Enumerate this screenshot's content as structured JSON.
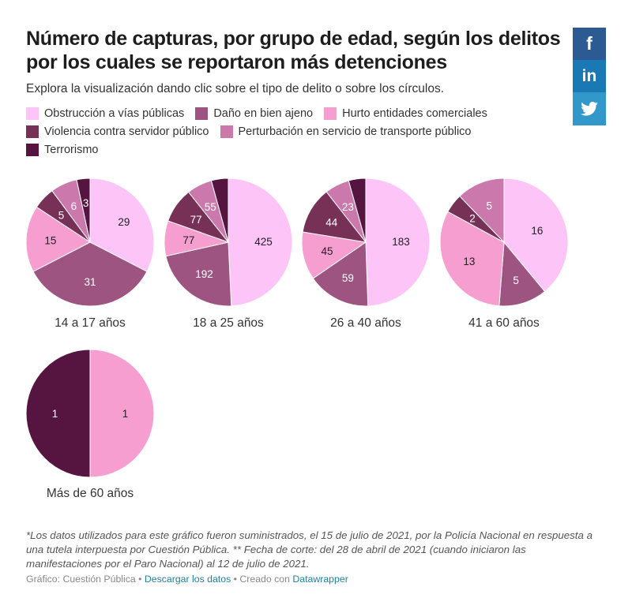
{
  "header": {
    "title": "Número de capturas, por grupo de edad, según los delitos por los cuales se reportaron más detenciones",
    "subtitle": "Explora la visualización dando clic sobre el tipo de delito o sobre los círculos."
  },
  "social": [
    {
      "name": "facebook-icon",
      "glyph": "f",
      "color": "#2c5b93"
    },
    {
      "name": "linkedin-icon",
      "glyph": "in",
      "color": "#1a78b4"
    },
    {
      "name": "twitter-icon",
      "glyph": "🐦",
      "color": "#3198c9"
    }
  ],
  "legend": [
    {
      "label": "Obstrucción a vías públicas",
      "color": "#fdc4f8"
    },
    {
      "label": "Daño en bien ajeno",
      "color": "#9e5481"
    },
    {
      "label": "Hurto entidades comerciales",
      "color": "#f59ecf"
    },
    {
      "label": "Violencia contra servidor público",
      "color": "#773056"
    },
    {
      "label": "Perturbación en servicio de transporte público",
      "color": "#cb78ad"
    },
    {
      "label": "Terrorismo",
      "color": "#561540"
    }
  ],
  "chart_data": {
    "type": "pie",
    "title": "Número de capturas, por grupo de edad, según los delitos por los cuales se reportaron más detenciones",
    "categories": [
      "Obstrucción a vías públicas",
      "Daño en bien ajeno",
      "Hurto entidades comerciales",
      "Violencia contra servidor público",
      "Perturbación en servicio de transporte público",
      "Terrorismo"
    ],
    "colors": [
      "#fdc4f8",
      "#9e5481",
      "#f59ecf",
      "#773056",
      "#cb78ad",
      "#561540"
    ],
    "label_colors": [
      "#222222",
      "#ffffff",
      "#222222",
      "#ffffff",
      "#ffffff",
      "#ffffff"
    ],
    "series": [
      {
        "name": "14 a 17 años",
        "values": [
          29,
          31,
          15,
          5,
          6,
          3
        ],
        "labels_shown": [
          true,
          true,
          true,
          true,
          true,
          true
        ]
      },
      {
        "name": "18 a 25 años",
        "values": [
          425,
          192,
          77,
          77,
          55,
          37
        ],
        "labels_shown": [
          true,
          true,
          true,
          true,
          true,
          false
        ]
      },
      {
        "name": "26 a 40 años",
        "values": [
          183,
          59,
          45,
          44,
          23,
          16
        ],
        "labels_shown": [
          true,
          true,
          true,
          true,
          true,
          false
        ]
      },
      {
        "name": "41 a 60 años",
        "values": [
          16,
          5,
          13,
          2,
          5,
          0
        ],
        "labels_shown": [
          true,
          true,
          true,
          true,
          true,
          false
        ]
      },
      {
        "name": "Más de 60 años",
        "values": [
          0,
          0,
          1,
          0,
          0,
          1
        ],
        "labels_shown": [
          false,
          false,
          true,
          false,
          false,
          true
        ]
      }
    ],
    "legend_position": "top"
  },
  "notes": "*Los datos utilizados para este gráfico fueron suministrados, el 15 de julio de 2021, por la Policía Nacional en respuesta a una tutela interpuesta por Cuestión Pública. ** Fecha de corte: del 28 de abril de 2021 (cuando iniciaron las manifestaciones por el Paro Nacional) al 12 de julio de 2021.",
  "footer": {
    "credit": "Gráfico: Cuestión Pública",
    "sep": " • ",
    "download_link": "Descargar los datos",
    "created_with": "Creado con ",
    "tool_link": "Datawrapper"
  }
}
